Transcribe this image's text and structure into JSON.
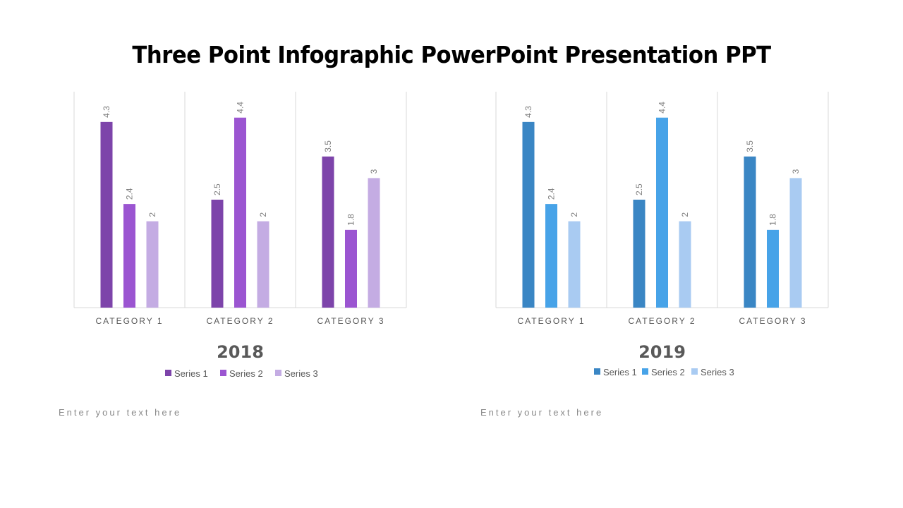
{
  "title": "Three Point Infographic PowerPoint Presentation PPT",
  "chart_data": [
    {
      "type": "bar",
      "title": "2018",
      "categories": [
        "CATEGORY 1",
        "CATEGORY 2",
        "CATEGORY 3"
      ],
      "series": [
        {
          "name": "Series 1",
          "values": [
            4.3,
            2.5,
            3.5
          ],
          "color": "#7d44aa"
        },
        {
          "name": "Series 2",
          "values": [
            2.4,
            4.4,
            1.8
          ],
          "color": "#9b55d1"
        },
        {
          "name": "Series 3",
          "values": [
            2,
            2,
            3
          ],
          "color": "#c4ace3"
        }
      ],
      "ylim": [
        0,
        5
      ],
      "grid": "vertical category separators",
      "legend": "bottom"
    },
    {
      "type": "bar",
      "title": "2019",
      "categories": [
        "CATEGORY 1",
        "CATEGORY 2",
        "CATEGORY 3"
      ],
      "series": [
        {
          "name": "Series 1",
          "values": [
            4.3,
            2.5,
            3.5
          ],
          "color": "#3a86c4"
        },
        {
          "name": "Series 2",
          "values": [
            2.4,
            4.4,
            1.8
          ],
          "color": "#47a3e8"
        },
        {
          "name": "Series 3",
          "values": [
            2,
            2,
            3
          ],
          "color": "#a9cbf2"
        }
      ],
      "ylim": [
        0,
        5
      ],
      "grid": "vertical category separators",
      "legend": "bottom"
    }
  ],
  "notes": [
    "Enter your text here",
    "Enter your text here"
  ]
}
